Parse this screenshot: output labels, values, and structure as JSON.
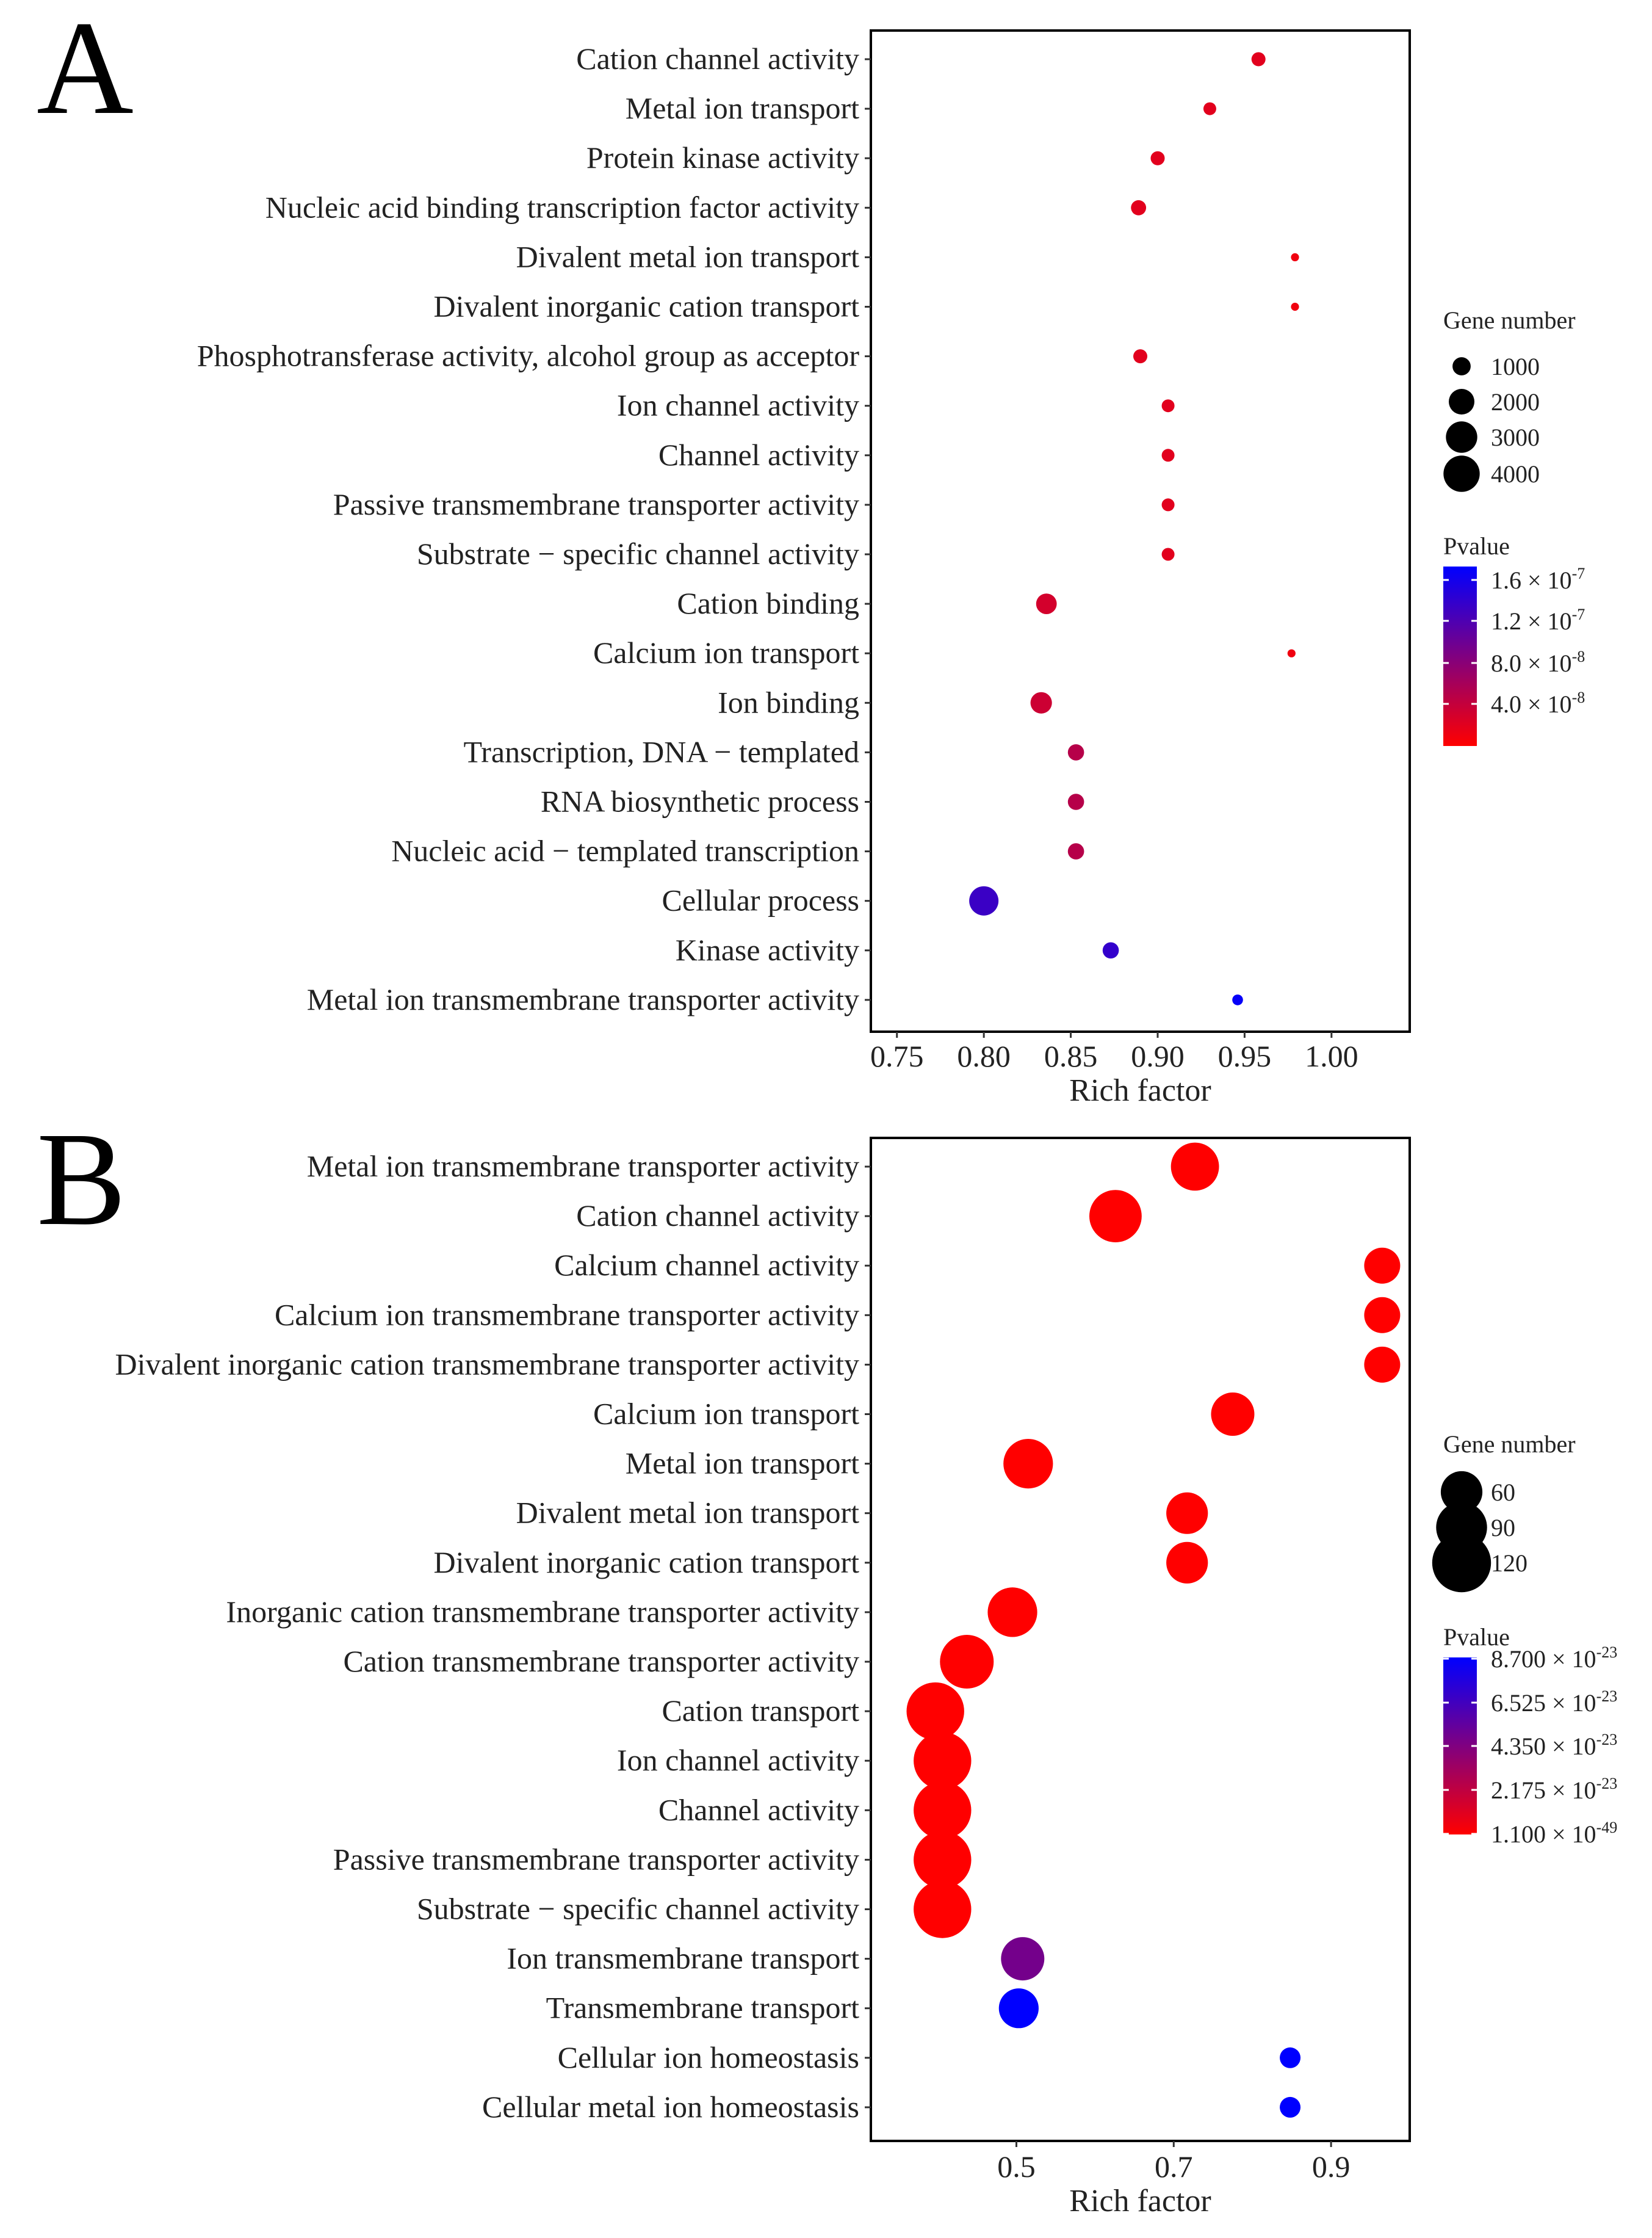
{
  "chart_data": [
    {
      "type": "scatter",
      "panel_label": "A",
      "xlabel": "Rich factor",
      "ylabel": "",
      "xlim": [
        0.735,
        1.045
      ],
      "x_ticks": [
        0.75,
        0.8,
        0.85,
        0.9,
        0.95,
        1.0
      ],
      "x_tick_labels": [
        "0.75",
        "0.80",
        "0.85",
        "0.90",
        "0.95",
        "1.00"
      ],
      "categories": [
        "Cation channel activity",
        "Metal ion transport",
        "Protein kinase activity",
        "Nucleic acid binding transcription factor activity",
        "Divalent metal ion transport",
        "Divalent inorganic cation transport",
        "Phosphotransferase activity, alcohol group as acceptor",
        "Ion channel activity",
        "Channel activity",
        "Passive transmembrane transporter activity",
        "Substrate − specific channel activity",
        "Cation binding",
        "Calcium ion transport",
        "Ion binding",
        "Transcription, DNA − templated",
        "RNA biosynthetic process",
        "Nucleic acid − templated transcription",
        "Cellular process",
        "Kinase activity",
        "Metal ion transmembrane transporter activity"
      ],
      "x": [
        0.958,
        0.93,
        0.9,
        0.889,
        0.979,
        0.979,
        0.89,
        0.906,
        0.906,
        0.906,
        0.906,
        0.836,
        0.977,
        0.833,
        0.853,
        0.853,
        0.853,
        0.8,
        0.873,
        0.946
      ],
      "gene_number": [
        600,
        500,
        600,
        700,
        200,
        200,
        600,
        500,
        500,
        500,
        500,
        1300,
        200,
        1400,
        800,
        800,
        800,
        2600,
        800,
        350
      ],
      "pvalue": [
        2e-08,
        2e-08,
        2e-08,
        2e-08,
        1e-08,
        1e-08,
        2e-08,
        2e-08,
        2e-08,
        2e-08,
        2e-08,
        3e-08,
        1e-08,
        3.5e-08,
        5e-08,
        5e-08,
        5e-08,
        1.35e-07,
        1.4e-07,
        1.7e-07
      ],
      "size_legend": {
        "title": "Gene number",
        "values": [
          1000,
          2000,
          3000,
          4000
        ],
        "labels": [
          "1000",
          "2000",
          "3000",
          "4000"
        ]
      },
      "color_legend": {
        "title": "Pvalue",
        "min": 0,
        "max": 1.75e-07,
        "ticks": [
          1.6e-07,
          1.2e-07,
          8e-08,
          4e-08
        ],
        "tick_mantissas": [
          "1.6 × 10",
          "1.2 × 10",
          "8.0 × 10",
          "4.0 × 10"
        ],
        "tick_exponents": [
          "-7",
          "-7",
          "-8",
          "-8"
        ]
      }
    },
    {
      "type": "scatter",
      "panel_label": "B",
      "xlabel": "Rich factor",
      "ylabel": "",
      "xlim": [
        0.315,
        1.0
      ],
      "x_ticks": [
        0.5,
        0.7,
        0.9
      ],
      "x_tick_labels": [
        "0.5",
        "0.7",
        "0.9"
      ],
      "categories": [
        "Metal ion transmembrane transporter activity",
        "Cation channel activity",
        "Calcium channel activity",
        "Calcium ion transmembrane transporter activity",
        "Divalent inorganic cation transmembrane transporter activity",
        "Calcium ion transport",
        "Metal ion transport",
        "Divalent metal ion transport",
        "Divalent inorganic cation transport",
        "Inorganic cation transmembrane transporter activity",
        "Cation transmembrane transporter activity",
        "Cation transport",
        "Ion channel activity",
        "Channel activity",
        "Passive transmembrane transporter activity",
        "Substrate − specific channel activity",
        "Ion transmembrane transport",
        "Transmembrane transport",
        "Cellular ion homeostasis",
        "Cellular metal ion homeostasis"
      ],
      "x": [
        0.727,
        0.626,
        0.965,
        0.965,
        0.965,
        0.775,
        0.515,
        0.717,
        0.717,
        0.495,
        0.437,
        0.397,
        0.406,
        0.406,
        0.406,
        0.406,
        0.508,
        0.503,
        0.848,
        0.848
      ],
      "gene_number": [
        80,
        95,
        45,
        45,
        45,
        65,
        85,
        60,
        60,
        85,
        100,
        115,
        115,
        115,
        115,
        115,
        65,
        55,
        15,
        15
      ],
      "pvalue": [
        1e-25,
        1e-25,
        1e-25,
        1e-25,
        1e-25,
        1e-25,
        1e-25,
        1e-25,
        1e-25,
        1e-25,
        1e-25,
        1e-25,
        1e-25,
        1e-25,
        1e-25,
        1e-25,
        4.8e-23,
        8.8e-23,
        8.8e-23,
        8.8e-23
      ],
      "size_legend": {
        "title": "Gene number",
        "values": [
          60,
          90,
          120
        ],
        "labels": [
          "60",
          "90",
          "120"
        ]
      },
      "color_legend": {
        "title": "Pvalue",
        "min": 0,
        "max": 8.8e-23,
        "ticks": [
          8.7e-23,
          6.525e-23,
          4.35e-23,
          2.175e-23,
          1.1e-49
        ],
        "tick_mantissas": [
          "8.700 × 10",
          "6.525 × 10",
          "4.350 × 10",
          "2.175 × 10",
          "1.100 × 10"
        ],
        "tick_exponents": [
          "-23",
          "-23",
          "-23",
          "-23",
          "-49"
        ]
      }
    }
  ]
}
